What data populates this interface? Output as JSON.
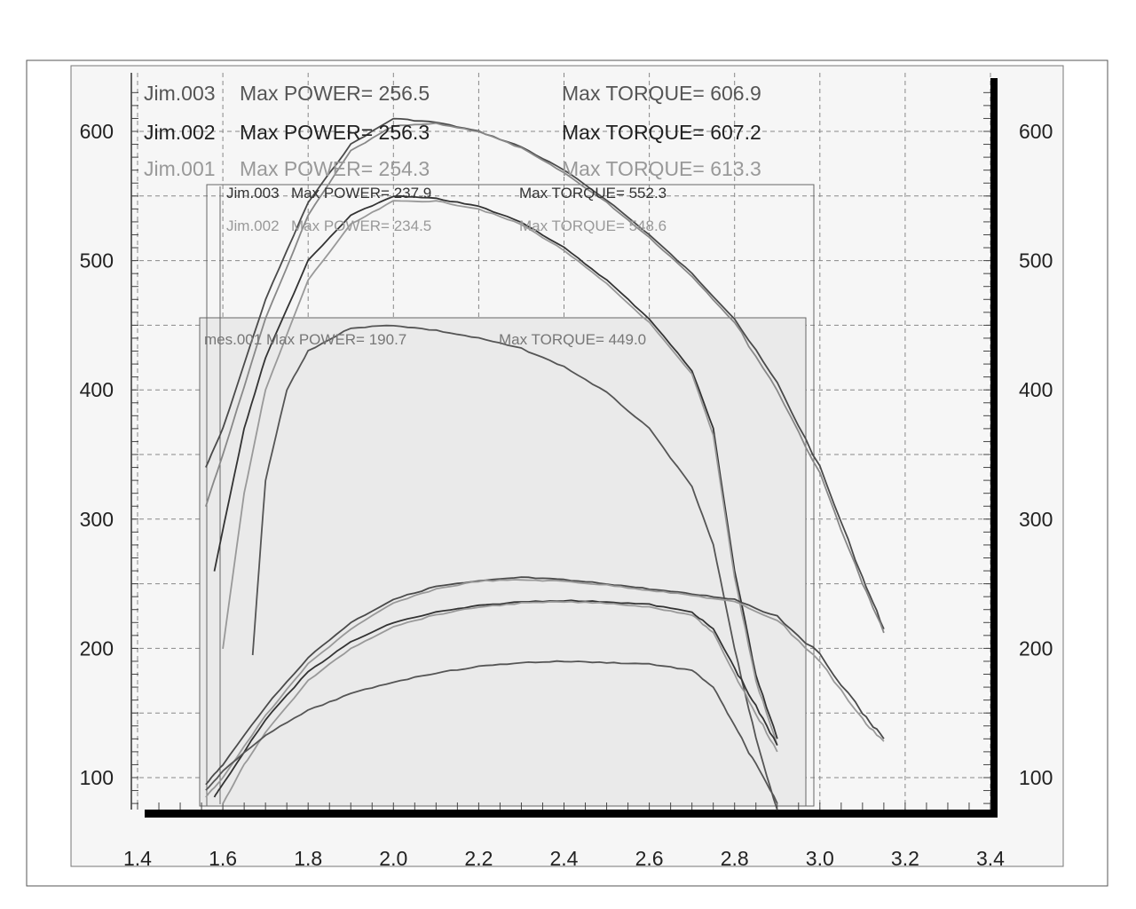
{
  "chart_data": {
    "type": "line",
    "title": "",
    "xlabel": "",
    "ylabel": "",
    "xlim": [
      1.4,
      3.4
    ],
    "ylim": [
      70,
      640
    ],
    "x_ticks": [
      "1.4",
      "1.6",
      "1.8",
      "2.0",
      "2.2",
      "2.4",
      "2.6",
      "2.8",
      "3.0",
      "3.2",
      "3.4"
    ],
    "y_ticks": [
      "100",
      "200",
      "300",
      "400",
      "500",
      "600"
    ],
    "grid": true,
    "annotations": [
      {
        "run": "Jim.003",
        "power_label": "Max POWER= 256.5",
        "torque_label": "Max TORQUE= 606.9",
        "color": "#555555",
        "group": "top"
      },
      {
        "run": "Jim.002",
        "power_label": "Max POWER= 256.3",
        "torque_label": "Max TORQUE= 607.2",
        "color": "#222222",
        "group": "top"
      },
      {
        "run": "Jim.001",
        "power_label": "Max POWER= 254.3",
        "torque_label": "Max TORQUE= 613.3",
        "color": "#999999",
        "group": "top"
      },
      {
        "run": "Jim.003",
        "power_label": "Max POWER= 237.9",
        "torque_label": "Max TORQUE= 552.3",
        "color": "#333333",
        "group": "middle"
      },
      {
        "run": "Jim.002",
        "power_label": "Max POWER= 234.5",
        "torque_label": "Max TORQUE= 548.6",
        "color": "#999999",
        "group": "middle"
      },
      {
        "run": "mes.001",
        "power_label": "Max POWER= 190.7",
        "torque_label": "Max TORQUE= 449.0",
        "color": "#777777",
        "group": "bottom"
      }
    ],
    "series": [
      {
        "kind": "torque",
        "group": "top",
        "color": "#4a4a4a",
        "x": [
          1.56,
          1.6,
          1.7,
          1.8,
          1.9,
          2.0,
          2.1,
          2.2,
          2.3,
          2.4,
          2.5,
          2.6,
          2.7,
          2.8,
          2.9,
          3.0,
          3.1,
          3.15
        ],
        "y": [
          340,
          370,
          470,
          545,
          590,
          610,
          607,
          600,
          588,
          570,
          547,
          520,
          490,
          455,
          405,
          340,
          255,
          215
        ]
      },
      {
        "kind": "torque",
        "group": "top",
        "color": "#888888",
        "x": [
          1.56,
          1.6,
          1.7,
          1.8,
          1.9,
          2.0,
          2.1,
          2.2,
          2.3,
          2.4,
          2.5,
          2.6,
          2.7,
          2.8,
          2.9,
          3.0,
          3.1,
          3.15
        ],
        "y": [
          310,
          350,
          455,
          535,
          585,
          604,
          606,
          600,
          587,
          568,
          545,
          518,
          488,
          452,
          400,
          335,
          250,
          212
        ]
      },
      {
        "kind": "torque",
        "group": "middle",
        "color": "#333333",
        "x": [
          1.58,
          1.65,
          1.7,
          1.8,
          1.9,
          2.0,
          2.1,
          2.2,
          2.3,
          2.4,
          2.5,
          2.6,
          2.7,
          2.75,
          2.8,
          2.85,
          2.9
        ],
        "y": [
          260,
          370,
          425,
          500,
          535,
          550,
          548,
          542,
          530,
          510,
          485,
          455,
          415,
          370,
          260,
          180,
          130
        ]
      },
      {
        "kind": "torque",
        "group": "middle",
        "color": "#999999",
        "x": [
          1.6,
          1.65,
          1.7,
          1.8,
          1.9,
          2.0,
          2.1,
          2.2,
          2.3,
          2.4,
          2.5,
          2.6,
          2.7,
          2.75,
          2.8,
          2.85,
          2.9
        ],
        "y": [
          200,
          320,
          400,
          485,
          528,
          546,
          546,
          540,
          528,
          508,
          482,
          452,
          412,
          365,
          255,
          175,
          125
        ]
      },
      {
        "kind": "torque",
        "group": "bottom",
        "color": "#555555",
        "x": [
          1.67,
          1.7,
          1.75,
          1.8,
          1.9,
          2.0,
          2.1,
          2.2,
          2.3,
          2.4,
          2.5,
          2.6,
          2.7,
          2.75,
          2.8,
          2.85,
          2.9
        ],
        "y": [
          195,
          330,
          400,
          430,
          448,
          450,
          446,
          440,
          432,
          418,
          398,
          370,
          325,
          280,
          200,
          130,
          75
        ]
      },
      {
        "kind": "power",
        "group": "top",
        "color": "#4a4a4a",
        "x": [
          1.56,
          1.6,
          1.7,
          1.8,
          1.9,
          2.0,
          2.1,
          2.2,
          2.3,
          2.4,
          2.5,
          2.6,
          2.7,
          2.8,
          2.9,
          3.0,
          3.1,
          3.15
        ],
        "y": [
          95,
          110,
          155,
          193,
          220,
          238,
          248,
          252,
          255,
          253,
          250,
          246,
          242,
          238,
          225,
          195,
          150,
          130
        ]
      },
      {
        "kind": "power",
        "group": "top",
        "color": "#999999",
        "x": [
          1.56,
          1.6,
          1.7,
          1.8,
          1.9,
          2.0,
          2.1,
          2.2,
          2.3,
          2.4,
          2.5,
          2.6,
          2.7,
          2.8,
          2.9,
          3.0,
          3.1,
          3.15
        ],
        "y": [
          85,
          100,
          148,
          188,
          215,
          235,
          246,
          252,
          253,
          252,
          249,
          245,
          241,
          236,
          222,
          190,
          145,
          128
        ]
      },
      {
        "kind": "power",
        "group": "middle",
        "color": "#333333",
        "x": [
          1.58,
          1.6,
          1.7,
          1.8,
          1.9,
          2.0,
          2.1,
          2.2,
          2.3,
          2.4,
          2.5,
          2.6,
          2.7,
          2.75,
          2.8,
          2.85,
          2.9
        ],
        "y": [
          85,
          95,
          145,
          182,
          205,
          220,
          228,
          233,
          236,
          237,
          236,
          234,
          228,
          215,
          185,
          155,
          125
        ]
      },
      {
        "kind": "power",
        "group": "middle",
        "color": "#999999",
        "x": [
          1.6,
          1.65,
          1.7,
          1.8,
          1.9,
          2.0,
          2.1,
          2.2,
          2.3,
          2.4,
          2.5,
          2.6,
          2.7,
          2.75,
          2.8,
          2.85,
          2.9
        ],
        "y": [
          80,
          110,
          135,
          175,
          200,
          217,
          226,
          232,
          235,
          236,
          235,
          232,
          226,
          212,
          180,
          150,
          120
        ]
      },
      {
        "kind": "power",
        "group": "bottom",
        "color": "#555555",
        "x": [
          1.56,
          1.6,
          1.7,
          1.8,
          1.9,
          2.0,
          2.1,
          2.2,
          2.3,
          2.4,
          2.5,
          2.6,
          2.7,
          2.75,
          2.8,
          2.85,
          2.9
        ],
        "y": [
          90,
          105,
          133,
          152,
          165,
          174,
          181,
          186,
          189,
          190,
          189,
          188,
          183,
          170,
          140,
          110,
          80
        ]
      }
    ]
  }
}
